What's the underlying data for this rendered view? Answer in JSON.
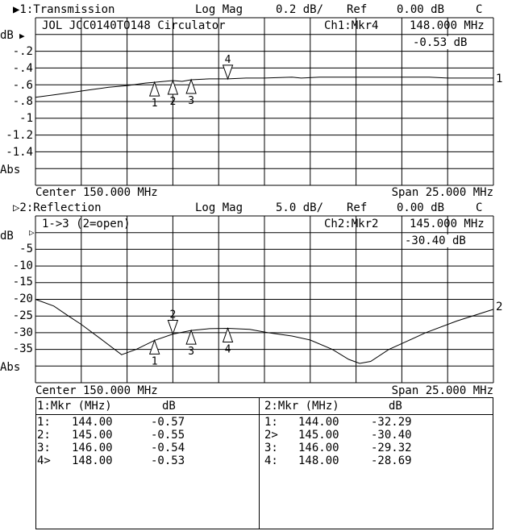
{
  "colors": {
    "background": "#ffffff",
    "foreground": "#000000"
  },
  "ch1": {
    "title": "▶1:Transmission",
    "format": "Log Mag",
    "scale": "0.2 dB/",
    "ref_label": "Ref",
    "ref_value": "0.00 dB",
    "cal": "C",
    "annotation": "JOL JCC0140TO148 Circulator",
    "active_marker": "Ch1:Mkr4",
    "marker_freq": "148.000 MHz",
    "marker_value": "-0.53 dB",
    "y_unit": "dB",
    "y_ticks": [
      "-.2",
      "-.4",
      "-.6",
      "-.8",
      "-1",
      "-1.2",
      "-1.4"
    ],
    "y_mode": "Abs",
    "center": "Center 150.000 MHz",
    "span": "Span 25.000 MHz",
    "trace_label": "1"
  },
  "ch2": {
    "title": "▷2:Reflection",
    "format": "Log Mag",
    "scale": "5.0 dB/",
    "ref_label": "Ref",
    "ref_value": "0.00 dB",
    "cal": "C",
    "annotation": "1->3 (2=open)",
    "active_marker": "Ch2:Mkr2",
    "marker_freq": "145.000 MHz",
    "marker_value": "-30.40 dB",
    "y_unit": "dB",
    "y_ticks": [
      "-5",
      "-10",
      "-15",
      "-20",
      "-25",
      "-30",
      "-35"
    ],
    "y_mode": "Abs",
    "center": "Center 150.000 MHz",
    "span": "Span 25.000 MHz",
    "trace_label": "2"
  },
  "marker_table": [
    {
      "header_mkr": "1:Mkr (MHz)",
      "header_db": "dB",
      "rows": [
        {
          "id": "1:",
          "freq": "144.00",
          "value": "-0.57"
        },
        {
          "id": "2:",
          "freq": "145.00",
          "value": "-0.55"
        },
        {
          "id": "3:",
          "freq": "146.00",
          "value": "-0.54"
        },
        {
          "id": "4>",
          "freq": "148.00",
          "value": "-0.53"
        }
      ]
    },
    {
      "header_mkr": "2:Mkr (MHz)",
      "header_db": "dB",
      "rows": [
        {
          "id": "1:",
          "freq": "144.00",
          "value": "-32.29"
        },
        {
          "id": "2>",
          "freq": "145.00",
          "value": "-30.40"
        },
        {
          "id": "3:",
          "freq": "146.00",
          "value": "-29.32"
        },
        {
          "id": "4:",
          "freq": "148.00",
          "value": "-28.69"
        }
      ]
    }
  ],
  "chart_data": [
    {
      "type": "line",
      "title": "1:Transmission",
      "xlabel": "",
      "ylabel": "dB",
      "xlim": [
        137.5,
        162.5
      ],
      "ylim": [
        -1.8,
        0.2
      ],
      "reference": 0.0,
      "grid": true,
      "x_divisions": 10,
      "y_divisions": 10,
      "series": [
        {
          "name": "1",
          "points": [
            [
              137.5,
              -0.75
            ],
            [
              138.5,
              -0.72
            ],
            [
              139.5,
              -0.69
            ],
            [
              140.5,
              -0.66
            ],
            [
              141.5,
              -0.63
            ],
            [
              142.5,
              -0.61
            ],
            [
              143.5,
              -0.58
            ],
            [
              144,
              -0.57
            ],
            [
              145,
              -0.55
            ],
            [
              145.5,
              -0.56
            ],
            [
              146,
              -0.54
            ],
            [
              147,
              -0.53
            ],
            [
              148,
              -0.53
            ],
            [
              149,
              -0.52
            ],
            [
              150,
              -0.52
            ],
            [
              151.5,
              -0.51
            ],
            [
              152,
              -0.52
            ],
            [
              153,
              -0.51
            ],
            [
              155,
              -0.51
            ],
            [
              157,
              -0.51
            ],
            [
              159,
              -0.51
            ],
            [
              160,
              -0.52
            ],
            [
              162.5,
              -0.52
            ]
          ]
        }
      ],
      "markers": [
        {
          "label": "1",
          "x": 144,
          "y": -0.57,
          "active": false
        },
        {
          "label": "2",
          "x": 145,
          "y": -0.55,
          "active": false
        },
        {
          "label": "3",
          "x": 146,
          "y": -0.54,
          "active": false
        },
        {
          "label": "4",
          "x": 148,
          "y": -0.53,
          "active": true
        }
      ]
    },
    {
      "type": "line",
      "title": "2:Reflection",
      "xlabel": "",
      "ylabel": "dB",
      "xlim": [
        137.5,
        162.5
      ],
      "ylim": [
        -45,
        5
      ],
      "reference": 0.0,
      "grid": true,
      "x_divisions": 10,
      "y_divisions": 10,
      "series": [
        {
          "name": "2",
          "points": [
            [
              137.5,
              -20
            ],
            [
              138.5,
              -22
            ],
            [
              139.3,
              -25
            ],
            [
              140,
              -27.5
            ],
            [
              141.1,
              -32
            ],
            [
              142.2,
              -36.6
            ],
            [
              143,
              -35
            ],
            [
              144,
              -32.29
            ],
            [
              145,
              -30.4
            ],
            [
              146,
              -29.32
            ],
            [
              147,
              -28.8
            ],
            [
              148,
              -28.69
            ],
            [
              149.2,
              -29
            ],
            [
              150.2,
              -30
            ],
            [
              151.5,
              -31
            ],
            [
              152.5,
              -32.2
            ],
            [
              153.7,
              -35
            ],
            [
              154.6,
              -38
            ],
            [
              155.2,
              -39.2
            ],
            [
              155.8,
              -38.6
            ],
            [
              156.8,
              -35
            ],
            [
              157.8,
              -32.5
            ],
            [
              158.8,
              -30
            ],
            [
              160.5,
              -26.5
            ],
            [
              162.5,
              -23
            ]
          ]
        }
      ],
      "markers": [
        {
          "label": "1",
          "x": 144,
          "y": -32.29,
          "active": false
        },
        {
          "label": "2",
          "x": 145,
          "y": -30.4,
          "active": true
        },
        {
          "label": "3",
          "x": 146,
          "y": -29.32,
          "active": false
        },
        {
          "label": "4",
          "x": 148,
          "y": -28.69,
          "active": false
        }
      ]
    }
  ]
}
